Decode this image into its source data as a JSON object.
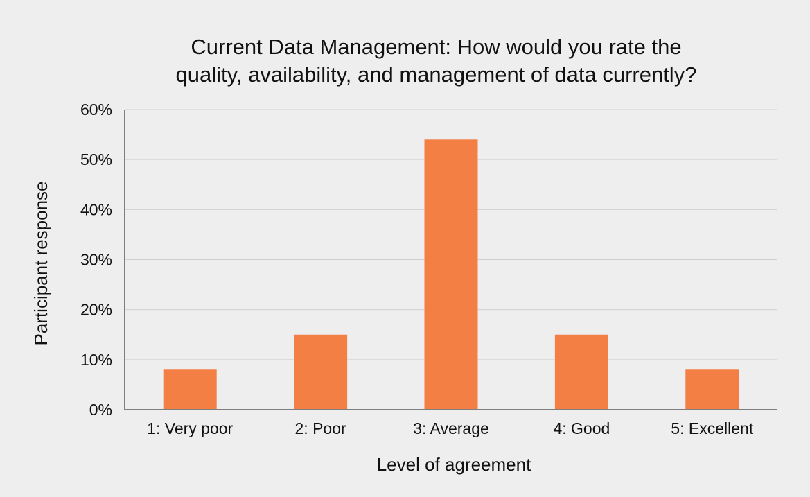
{
  "chart_data": {
    "type": "bar",
    "title_lines": [
      "Current Data Management: How would you rate the",
      "quality, availability, and management of data currently?"
    ],
    "categories": [
      "1: Very poor",
      "2: Poor",
      "3: Average",
      "4: Good",
      "5: Excellent"
    ],
    "values": [
      8,
      15,
      54,
      15,
      8
    ],
    "value_unit": "%",
    "xlabel": "Level of agreement",
    "ylabel": "Participant response",
    "ylim": [
      0,
      60
    ],
    "yticks": [
      "0%",
      "10%",
      "20%",
      "30%",
      "40%",
      "50%",
      "60%"
    ],
    "grid": true,
    "legend": "none",
    "colors": {
      "bar": "#f47f44",
      "grid": "#d0d0d2",
      "axis": "#7f7f7f",
      "background": "#eeeeef"
    }
  }
}
